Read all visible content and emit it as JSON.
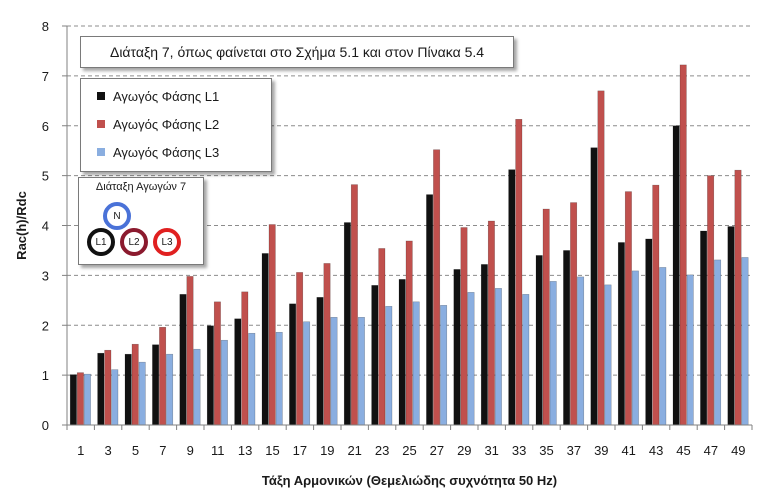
{
  "chart_data": {
    "type": "bar",
    "title": "Διάταξη 7, όπως φαίνεται στο Σχήμα 5.1 και στον Πίνακα 5.4",
    "xlabel": "Τάξη Αρμονικών (Θεμελιώδης συχνότητα 50 Hz)",
    "ylabel": "Rac(h)/Rdc",
    "ylim": [
      0,
      8
    ],
    "yticks": [
      "0",
      "1",
      "2",
      "3",
      "4",
      "5",
      "6",
      "7",
      "8"
    ],
    "grid": "horizontal dashed",
    "legend_position": "top-left",
    "categories": [
      "1",
      "3",
      "5",
      "7",
      "9",
      "11",
      "13",
      "15",
      "17",
      "19",
      "21",
      "23",
      "25",
      "27",
      "29",
      "31",
      "33",
      "35",
      "37",
      "39",
      "41",
      "43",
      "45",
      "47",
      "49"
    ],
    "series": [
      {
        "name": "Αγωγός Φάσης L1",
        "color": "#111111",
        "values": [
          1.01,
          1.44,
          1.42,
          1.61,
          2.62,
          1.99,
          2.13,
          3.44,
          2.43,
          2.56,
          4.06,
          2.8,
          2.92,
          4.62,
          3.12,
          3.22,
          5.12,
          3.4,
          3.5,
          5.56,
          3.66,
          3.73,
          6.0,
          3.89,
          3.98
        ]
      },
      {
        "name": "Αγωγός Φάσης L2",
        "color": "#c0504d",
        "values": [
          1.05,
          1.5,
          1.62,
          1.96,
          2.98,
          2.47,
          2.67,
          4.02,
          3.06,
          3.24,
          4.82,
          3.54,
          3.69,
          5.52,
          3.96,
          4.09,
          6.13,
          4.33,
          4.46,
          6.7,
          4.68,
          4.81,
          7.22,
          5.0,
          5.11
        ]
      },
      {
        "name": "Αγωγός Φάσης L3",
        "color": "#8aaee0",
        "values": [
          1.02,
          1.11,
          1.26,
          1.42,
          1.52,
          1.7,
          1.84,
          1.86,
          2.07,
          2.16,
          2.16,
          2.38,
          2.47,
          2.4,
          2.66,
          2.74,
          2.62,
          2.88,
          2.97,
          2.81,
          3.09,
          3.16,
          3.01,
          3.31,
          3.36
        ]
      }
    ]
  },
  "inset": {
    "title": "Διάταξη Αγωγών 7",
    "conductors": [
      {
        "label": "N",
        "color": "#4a72d8"
      },
      {
        "label": "L1",
        "color": "#111111"
      },
      {
        "label": "L2",
        "color": "#8b1a2e"
      },
      {
        "label": "L3",
        "color": "#e02020"
      }
    ]
  }
}
